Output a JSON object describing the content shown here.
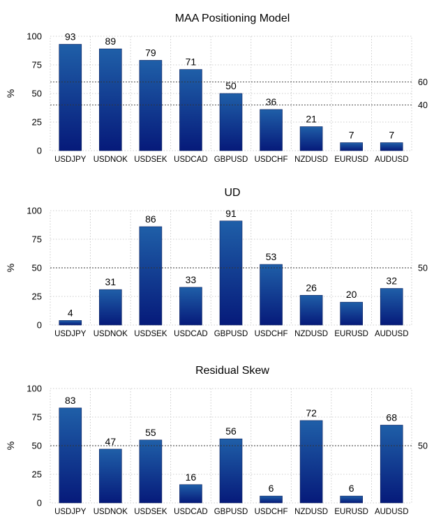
{
  "colors": {
    "bar_top": "#1f5fa8",
    "bar_bottom": "#061a7a",
    "bar_edge": "#0a1e5c",
    "grid": "#bdbdbd",
    "ref_line": "#333333"
  },
  "chart_data": [
    {
      "type": "bar",
      "title": "MAA Positioning Model",
      "ylabel": "%",
      "ylim": [
        0,
        100
      ],
      "yticks": [
        "0",
        "25",
        "50",
        "75",
        "100"
      ],
      "categories": [
        "USDJPY",
        "USDNOK",
        "USDSEK",
        "USDCAD",
        "GBPUSD",
        "USDCHF",
        "NZDUSD",
        "EURUSD",
        "AUDUSD"
      ],
      "values": [
        93,
        89,
        79,
        71,
        50,
        36,
        21,
        7,
        7
      ],
      "reference_lines": [
        60,
        40
      ],
      "reference_labels": [
        "60",
        "40"
      ],
      "grid": true
    },
    {
      "type": "bar",
      "title": "UD",
      "ylabel": "%",
      "ylim": [
        0,
        100
      ],
      "yticks": [
        "0",
        "25",
        "50",
        "75",
        "100"
      ],
      "categories": [
        "USDJPY",
        "USDNOK",
        "USDSEK",
        "USDCAD",
        "GBPUSD",
        "USDCHF",
        "NZDUSD",
        "EURUSD",
        "AUDUSD"
      ],
      "values": [
        4,
        31,
        86,
        33,
        91,
        53,
        26,
        20,
        32
      ],
      "reference_lines": [
        50
      ],
      "reference_labels": [
        "50"
      ],
      "grid": true
    },
    {
      "type": "bar",
      "title": "Residual Skew",
      "ylabel": "%",
      "ylim": [
        0,
        100
      ],
      "yticks": [
        "0",
        "25",
        "50",
        "75",
        "100"
      ],
      "categories": [
        "USDJPY",
        "USDNOK",
        "USDSEK",
        "USDCAD",
        "GBPUSD",
        "USDCHF",
        "NZDUSD",
        "EURUSD",
        "AUDUSD"
      ],
      "values": [
        83,
        47,
        55,
        16,
        56,
        6,
        72,
        6,
        68
      ],
      "reference_lines": [
        50
      ],
      "reference_labels": [
        "50"
      ],
      "grid": true
    }
  ]
}
